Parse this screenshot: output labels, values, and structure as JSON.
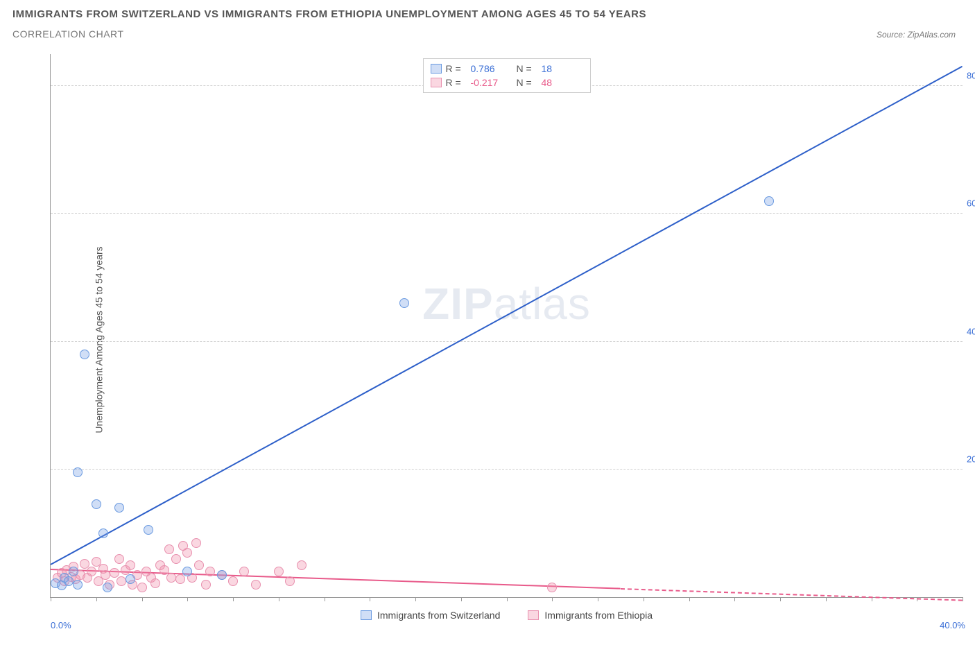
{
  "header": {
    "title": "IMMIGRANTS FROM SWITZERLAND VS IMMIGRANTS FROM ETHIOPIA UNEMPLOYMENT AMONG AGES 45 TO 54 YEARS",
    "subtitle": "CORRELATION CHART",
    "source": "Source: ZipAtlas.com"
  },
  "chart": {
    "type": "scatter",
    "ylabel": "Unemployment Among Ages 45 to 54 years",
    "watermark_a": "ZIP",
    "watermark_b": "atlas",
    "background_color": "#ffffff",
    "grid_color": "#d0d0d0",
    "axis_color": "#999999",
    "xlim": [
      0,
      40
    ],
    "ylim": [
      0,
      85
    ],
    "yticks": [
      20,
      40,
      60,
      80
    ],
    "ytick_labels": [
      "20.0%",
      "40.0%",
      "60.0%",
      "80.0%"
    ],
    "ytick_color": "#3b6fd6",
    "xtick_positions": [
      0,
      2,
      4,
      6,
      8,
      10,
      12,
      14,
      16,
      18,
      20,
      22,
      24,
      26,
      28,
      30,
      32,
      34,
      36,
      38,
      40
    ],
    "xtick_label_left": "0.0%",
    "xtick_label_right": "40.0%",
    "series": [
      {
        "name": "Immigrants from Switzerland",
        "legend_label": "Immigrants from Switzerland",
        "color": "#3b6fd6",
        "fill": "rgba(120,160,230,0.35)",
        "stroke": "#6a9ae0",
        "marker_radius": 7,
        "R_label": "R =",
        "R": "0.786",
        "N_label": "N =",
        "N": "18",
        "reg_line": {
          "x1": 0,
          "y1": 5,
          "x2": 40,
          "y2": 83,
          "color": "#2d5fc9",
          "width": 2
        },
        "points": [
          [
            0.2,
            2.2
          ],
          [
            0.5,
            1.8
          ],
          [
            0.6,
            3.0
          ],
          [
            0.8,
            2.5
          ],
          [
            1.0,
            4.0
          ],
          [
            1.2,
            2.0
          ],
          [
            1.2,
            19.5
          ],
          [
            1.5,
            38.0
          ],
          [
            2.0,
            14.5
          ],
          [
            2.3,
            10.0
          ],
          [
            2.5,
            1.5
          ],
          [
            3.0,
            14.0
          ],
          [
            3.5,
            2.8
          ],
          [
            4.3,
            10.5
          ],
          [
            6.0,
            4.0
          ],
          [
            7.5,
            3.5
          ],
          [
            15.5,
            46.0
          ],
          [
            31.5,
            62.0
          ]
        ]
      },
      {
        "name": "Immigrants from Ethiopia",
        "legend_label": "Immigrants from Ethiopia",
        "color": "#e85a8a",
        "fill": "rgba(240,140,170,0.35)",
        "stroke": "#e890ae",
        "marker_radius": 7,
        "R_label": "R =",
        "R": "-0.217",
        "N_label": "N =",
        "N": "48",
        "reg_line_solid": {
          "x1": 0,
          "y1": 4.2,
          "x2": 25,
          "y2": 1.2,
          "color": "#e85a8a",
          "width": 2
        },
        "reg_line_dash": {
          "x1": 25,
          "y1": 1.2,
          "x2": 40,
          "y2": -0.6,
          "color": "#e85a8a",
          "width": 2
        },
        "points": [
          [
            0.3,
            3.0
          ],
          [
            0.5,
            3.8
          ],
          [
            0.6,
            2.5
          ],
          [
            0.7,
            4.2
          ],
          [
            0.9,
            3.2
          ],
          [
            1.0,
            4.8
          ],
          [
            1.1,
            2.8
          ],
          [
            1.3,
            3.5
          ],
          [
            1.5,
            5.2
          ],
          [
            1.6,
            3.0
          ],
          [
            1.8,
            4.0
          ],
          [
            2.0,
            5.5
          ],
          [
            2.1,
            2.5
          ],
          [
            2.3,
            4.5
          ],
          [
            2.4,
            3.5
          ],
          [
            2.6,
            2.0
          ],
          [
            2.8,
            3.8
          ],
          [
            3.0,
            6.0
          ],
          [
            3.1,
            2.5
          ],
          [
            3.3,
            4.2
          ],
          [
            3.5,
            5.0
          ],
          [
            3.6,
            2.0
          ],
          [
            3.8,
            3.5
          ],
          [
            4.0,
            1.5
          ],
          [
            4.2,
            4.0
          ],
          [
            4.4,
            3.0
          ],
          [
            4.6,
            2.2
          ],
          [
            4.8,
            5.0
          ],
          [
            5.0,
            4.2
          ],
          [
            5.2,
            7.5
          ],
          [
            5.3,
            3.0
          ],
          [
            5.5,
            6.0
          ],
          [
            5.7,
            2.8
          ],
          [
            5.8,
            8.0
          ],
          [
            6.0,
            7.0
          ],
          [
            6.2,
            3.0
          ],
          [
            6.4,
            8.5
          ],
          [
            6.5,
            5.0
          ],
          [
            6.8,
            2.0
          ],
          [
            7.0,
            4.0
          ],
          [
            7.5,
            3.5
          ],
          [
            8.0,
            2.5
          ],
          [
            8.5,
            4.0
          ],
          [
            9.0,
            2.0
          ],
          [
            10.0,
            4.0
          ],
          [
            10.5,
            2.5
          ],
          [
            11.0,
            5.0
          ],
          [
            22.0,
            1.5
          ]
        ]
      }
    ]
  }
}
